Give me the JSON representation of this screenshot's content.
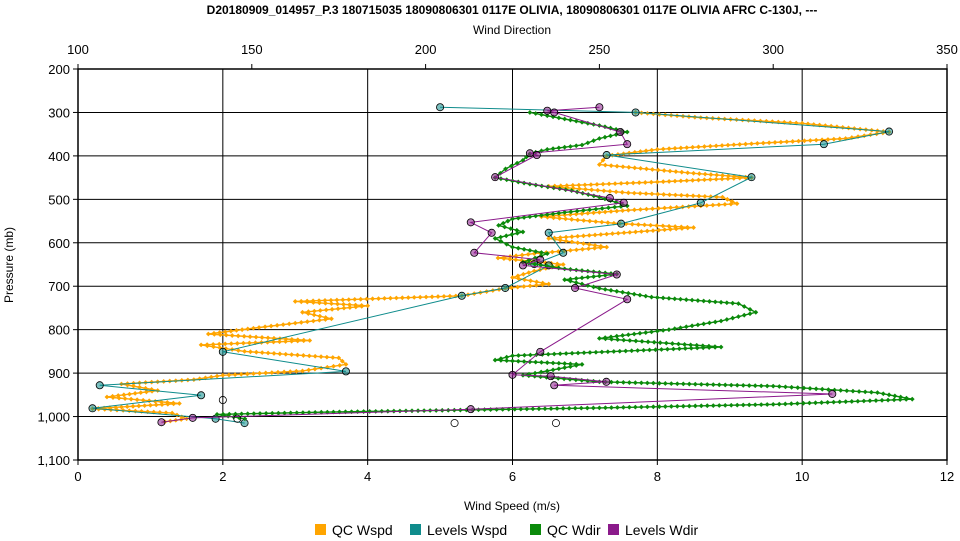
{
  "chart_data": {
    "type": "scatter",
    "title": "D20180909_014957_P.3 180715035 18090806301 0117E OLIVIA, 18090806301 0117E OLIVIA AFRC C-130J, ---",
    "xlabel": "Wind Speed (m/s)",
    "x2label": "Wind Direction",
    "ylabel": "Pressure (mb)",
    "xlim": [
      0,
      12
    ],
    "x2lim": [
      100,
      350
    ],
    "ylim": [
      200,
      1100
    ],
    "y_inverted": true,
    "grid": true,
    "legend_position": "bottom",
    "xticks": [
      "0",
      "2",
      "4",
      "6",
      "8",
      "10",
      "12"
    ],
    "x2ticks": [
      "100",
      "150",
      "200",
      "250",
      "300",
      "350"
    ],
    "yticks": [
      "200",
      "300",
      "400",
      "500",
      "600",
      "700",
      "800",
      "900",
      "1,000",
      "1,100"
    ],
    "series": [
      {
        "name": "QC Wspd",
        "axis": "bottom",
        "color": "#FFA500",
        "marker": "diamond",
        "points": [
          [
            7.7,
            300
          ],
          [
            8.6,
            312
          ],
          [
            10.0,
            325
          ],
          [
            11.2,
            345
          ],
          [
            10.6,
            360
          ],
          [
            9.3,
            372
          ],
          [
            8.0,
            385
          ],
          [
            7.3,
            400
          ],
          [
            7.2,
            420
          ],
          [
            8.5,
            440
          ],
          [
            9.3,
            450
          ],
          [
            8.0,
            460
          ],
          [
            6.5,
            470
          ],
          [
            7.6,
            485
          ],
          [
            8.9,
            495
          ],
          [
            9.1,
            510
          ],
          [
            7.6,
            525
          ],
          [
            6.4,
            540
          ],
          [
            7.4,
            555
          ],
          [
            8.5,
            565
          ],
          [
            7.3,
            580
          ],
          [
            6.5,
            590
          ],
          [
            6.9,
            600
          ],
          [
            7.3,
            610
          ],
          [
            6.3,
            625
          ],
          [
            5.8,
            635
          ],
          [
            6.7,
            650
          ],
          [
            6.3,
            665
          ],
          [
            6.0,
            680
          ],
          [
            6.5,
            695
          ],
          [
            5.9,
            705
          ],
          [
            5.3,
            722
          ],
          [
            3.0,
            735
          ],
          [
            4.0,
            745
          ],
          [
            3.1,
            760
          ],
          [
            3.5,
            775
          ],
          [
            2.5,
            795
          ],
          [
            1.8,
            810
          ],
          [
            3.2,
            825
          ],
          [
            1.7,
            835
          ],
          [
            2.3,
            850
          ],
          [
            3.6,
            865
          ],
          [
            3.7,
            880
          ],
          [
            3.1,
            895
          ],
          [
            2.0,
            905
          ],
          [
            1.6,
            915
          ],
          [
            0.6,
            925
          ],
          [
            1.1,
            940
          ],
          [
            0.4,
            955
          ],
          [
            1.4,
            970
          ],
          [
            0.2,
            982
          ],
          [
            1.3,
            992
          ],
          [
            1.5,
            1005
          ],
          [
            1.2,
            1012
          ]
        ]
      },
      {
        "name": "Levels Wspd",
        "axis": "bottom",
        "color": "#0F8C8C",
        "marker": "circle",
        "points": [
          [
            5.0,
            288
          ],
          [
            7.7,
            300
          ],
          [
            11.2,
            344
          ],
          [
            10.3,
            373
          ],
          [
            7.3,
            398
          ],
          [
            9.3,
            449
          ],
          [
            8.6,
            508
          ],
          [
            7.5,
            556
          ],
          [
            6.5,
            577
          ],
          [
            6.7,
            623
          ],
          [
            6.3,
            649
          ],
          [
            6.5,
            652
          ],
          [
            5.9,
            704
          ],
          [
            5.3,
            722
          ],
          [
            2.0,
            851
          ],
          [
            3.7,
            896
          ],
          [
            0.3,
            928
          ],
          [
            1.7,
            951
          ],
          [
            0.2,
            981
          ],
          [
            1.9,
            1005
          ],
          [
            2.3,
            1015
          ]
        ]
      },
      {
        "name": "QC Wdir",
        "axis": "top",
        "color": "#0B8A0B",
        "marker": "diamond",
        "points": [
          [
            230,
            300
          ],
          [
            240,
            315
          ],
          [
            250,
            330
          ],
          [
            258,
            345
          ],
          [
            250,
            360
          ],
          [
            245,
            375
          ],
          [
            235,
            385
          ],
          [
            230,
            395
          ],
          [
            228,
            410
          ],
          [
            223,
            430
          ],
          [
            220,
            450
          ],
          [
            230,
            465
          ],
          [
            242,
            480
          ],
          [
            250,
            495
          ],
          [
            258,
            515
          ],
          [
            240,
            530
          ],
          [
            225,
            545
          ],
          [
            221,
            560
          ],
          [
            228,
            575
          ],
          [
            220,
            590
          ],
          [
            225,
            610
          ],
          [
            235,
            625
          ],
          [
            228,
            645
          ],
          [
            240,
            660
          ],
          [
            255,
            672
          ],
          [
            240,
            685
          ],
          [
            250,
            705
          ],
          [
            265,
            725
          ],
          [
            290,
            740
          ],
          [
            295,
            760
          ],
          [
            285,
            780
          ],
          [
            270,
            800
          ],
          [
            250,
            820
          ],
          [
            285,
            840
          ],
          [
            225,
            860
          ],
          [
            220,
            870
          ],
          [
            245,
            880
          ],
          [
            235,
            895
          ],
          [
            228,
            905
          ],
          [
            250,
            920
          ],
          [
            300,
            930
          ],
          [
            330,
            945
          ],
          [
            340,
            960
          ],
          [
            300,
            972
          ],
          [
            250,
            980
          ],
          [
            170,
            990
          ],
          [
            140,
            995
          ],
          [
            148,
            1005
          ]
        ]
      },
      {
        "name": "Levels Wdir",
        "axis": "top",
        "color": "#8B1A8B",
        "marker": "circle",
        "points": [
          [
            250,
            288
          ],
          [
            235,
            296
          ],
          [
            237,
            300
          ],
          [
            256,
            345
          ],
          [
            258,
            373
          ],
          [
            230,
            394
          ],
          [
            232,
            398
          ],
          [
            220,
            449
          ],
          [
            253,
            497
          ],
          [
            257,
            508
          ],
          [
            213,
            553
          ],
          [
            219,
            577
          ],
          [
            214,
            623
          ],
          [
            233,
            639
          ],
          [
            228,
            652
          ],
          [
            255,
            673
          ],
          [
            243,
            704
          ],
          [
            258,
            730
          ],
          [
            233,
            851
          ],
          [
            225,
            904
          ],
          [
            236,
            907
          ],
          [
            252,
            920
          ],
          [
            237,
            928
          ],
          [
            317,
            948
          ],
          [
            213,
            983
          ],
          [
            133,
            1003
          ],
          [
            124,
            1013
          ]
        ]
      }
    ],
    "extra_markers": [
      [
        2.0,
        962
      ],
      [
        2.2,
        1005
      ],
      [
        5.2,
        1015
      ],
      [
        6.6,
        1015
      ]
    ]
  }
}
